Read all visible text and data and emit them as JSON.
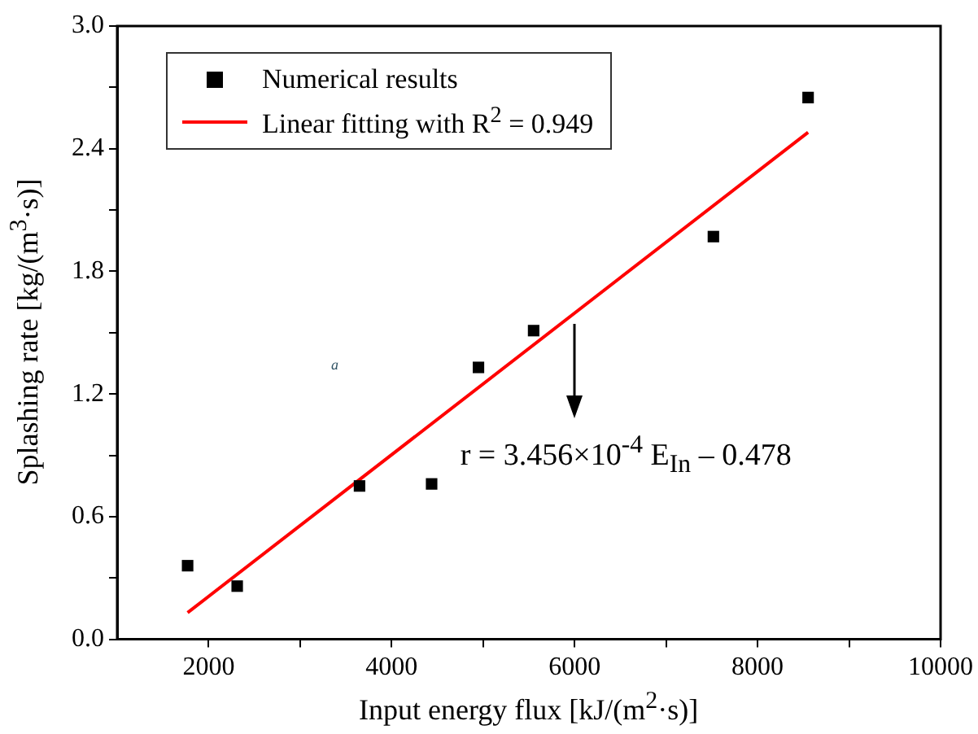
{
  "chart_data": {
    "type": "scatter",
    "xlabel": "Input energy flux [kJ/(m$^{2}$·s)]",
    "ylabel": "Splashing rate [kg/(m$^{3}$·s)]",
    "series": [
      {
        "name": "Numerical results",
        "color": "#000000",
        "marker": "square",
        "x": [
          1770,
          2312,
          3649,
          4437,
          4949,
          5552,
          7517,
          8552
        ],
        "values": [
          0.36,
          0.26,
          0.75,
          0.76,
          1.33,
          1.51,
          1.97,
          2.65
        ]
      },
      {
        "name": "Linear fitting with R$^{2}$ = 0.949",
        "type": "line",
        "color": "#ff0000",
        "marker": "none",
        "line_style": "solid",
        "x": [
          1770,
          8552
        ],
        "values": [
          0.13,
          2.48
        ]
      }
    ],
    "xlim": [
      1000,
      10000
    ],
    "xticks": [
      2000,
      {
        "value": 3000,
        "label": null
      },
      4000,
      {
        "value": 5000,
        "label": null
      },
      6000,
      {
        "value": 7000,
        "label": null
      },
      8000,
      {
        "value": 9000,
        "label": null
      },
      10000
    ],
    "ylim": [
      0,
      3
    ],
    "yticks": [
      {
        "value": 0,
        "label": "0.0"
      },
      {
        "value": 0.3,
        "label": null
      },
      {
        "value": 0.6,
        "label": "0.6"
      },
      {
        "value": 0.9,
        "label": null
      },
      {
        "value": 1.2,
        "label": "1.2"
      },
      {
        "value": 1.5,
        "label": null
      },
      {
        "value": 1.8,
        "label": "1.8"
      },
      {
        "value": 2.1,
        "label": null
      },
      {
        "value": 2.4,
        "label": "2.4"
      },
      {
        "value": 2.7,
        "label": null
      },
      {
        "value": 3,
        "label": "3.0"
      }
    ],
    "annotations": [
      "r = 3.456×10$^{-4}$ E$_{In}$ – 0.478",
      "a"
    ],
    "grid": false,
    "legend": "top left"
  }
}
